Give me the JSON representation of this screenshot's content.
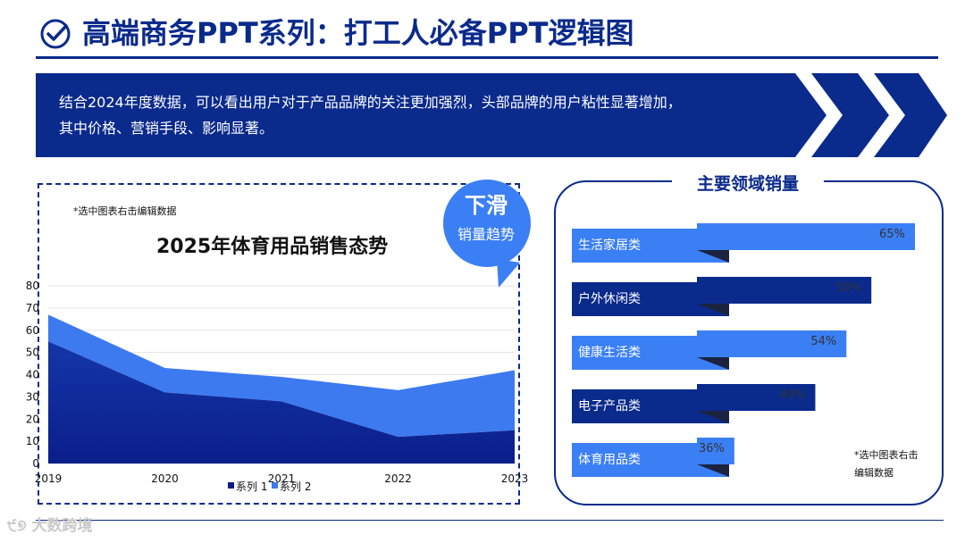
{
  "header": {
    "title": "高端商务PPT系列：打工人必备PPT逻辑图",
    "icon": "check-circle-icon"
  },
  "banner": {
    "text_line1": "结合2024年度数据，可以看出用户对于产品品牌的关注更加强烈，头部品牌的用户粘性显著增加，",
    "text_line2": "其中价格、营销手段、影响显著。"
  },
  "left_chart": {
    "note": "*选中图表右击编辑数据",
    "badge": {
      "line1": "下滑",
      "line2": "销量趋势"
    }
  },
  "right_panel": {
    "title": "主要领域销量",
    "note": "*选中图表右击编辑数据",
    "rows": [
      {
        "label": "生活家居类",
        "value_label": "65%",
        "value": 65,
        "style": "light"
      },
      {
        "label": "户外休闲类",
        "value_label": "58%",
        "value": 58,
        "style": "dark"
      },
      {
        "label": "健康生活类",
        "value_label": "54%",
        "value": 54,
        "style": "light"
      },
      {
        "label": "电子产品类",
        "value_label": "49%",
        "value": 49,
        "style": "dark"
      },
      {
        "label": "体育用品类",
        "value_label": "36%",
        "value": 36,
        "style": "light"
      }
    ]
  },
  "chart_data": {
    "type": "area",
    "title": "2025年体育用品销售态势",
    "x": [
      "2019",
      "2020",
      "2021",
      "2022",
      "2023"
    ],
    "series": [
      {
        "name": "系列 1",
        "values": [
          55,
          32,
          28,
          12,
          15
        ]
      },
      {
        "name": "系列 2",
        "values": [
          12,
          11,
          11,
          21,
          27
        ]
      }
    ],
    "stacked": true,
    "ylim": [
      0,
      80
    ],
    "yticks": [
      0,
      10,
      20,
      30,
      40,
      50,
      60,
      70,
      80
    ],
    "legend": "bottom",
    "grid": true
  },
  "colors": {
    "dark_blue": "#0a2a8c",
    "mid_blue": "#1d4fd8",
    "light_blue": "#3b7ff5",
    "area_top": "#3d7af0"
  },
  "footer": {
    "watermark": "大数跨境"
  }
}
